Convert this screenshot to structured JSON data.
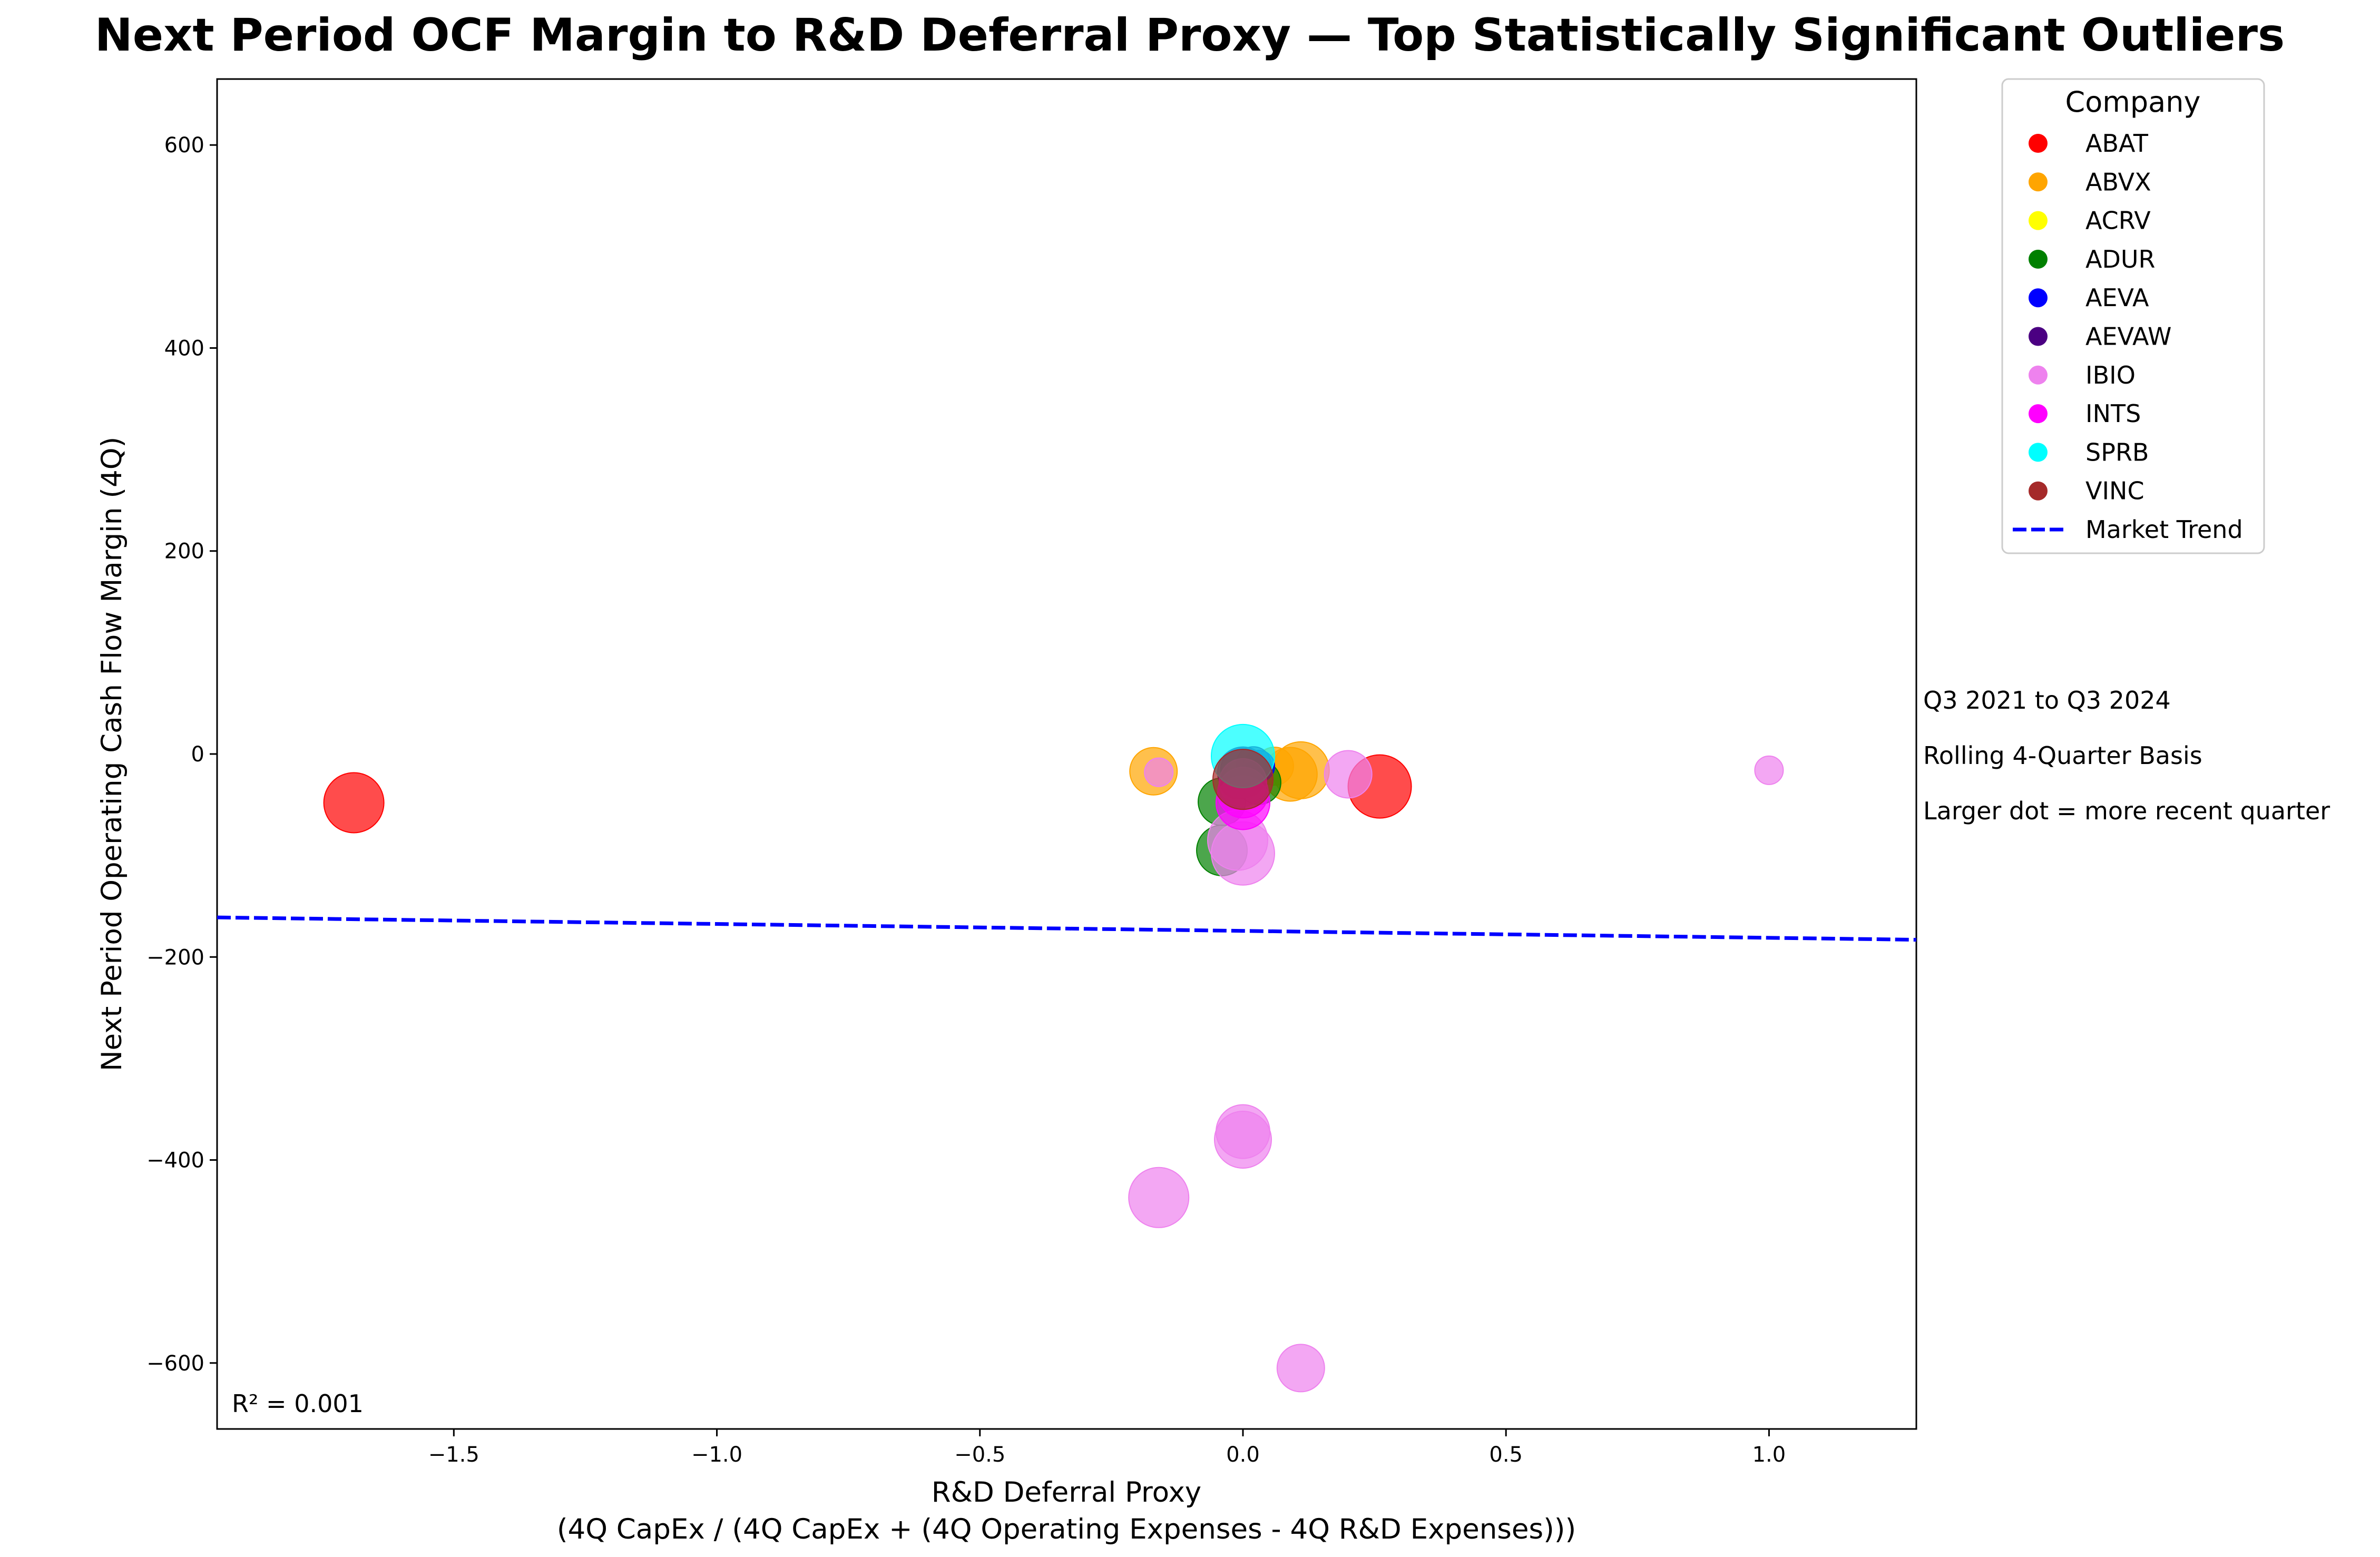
{
  "chart_data": {
    "type": "scatter",
    "title": "Next Period OCF Margin to R&D Deferral Proxy — Top Statistically Significant Outliers",
    "xlabel": "R&D Deferral Proxy",
    "xlabel_line2": "(4Q CapEx / (4Q CapEx + (4Q Operating Expenses - 4Q R&D Expenses)))",
    "ylabel": "Next Period Operating Cash Flow Margin (4Q)",
    "xlim": [
      -1.95,
      1.28
    ],
    "ylim": [
      -665,
      665
    ],
    "x_ticks": [
      -1.5,
      -1.0,
      -0.5,
      0.0,
      0.5,
      1.0
    ],
    "x_tick_labels": [
      "−1.5",
      "−1.0",
      "−0.5",
      "0.0",
      "0.5",
      "1.0"
    ],
    "y_ticks": [
      600,
      400,
      200,
      0,
      -200,
      -400,
      -600
    ],
    "y_tick_labels": [
      "600",
      "400",
      "200",
      "0",
      "−200",
      "−400",
      "−600"
    ],
    "grid": false,
    "legend_title": "Company",
    "legend_placement": "outside-top-right",
    "series": [
      {
        "name": "ABAT",
        "color": "#ff0000",
        "points": [
          {
            "x": -1.69,
            "y": -48,
            "size": 0.95
          },
          {
            "x": 0.26,
            "y": -32,
            "size": 1.0
          },
          {
            "x": -0.01,
            "y": -27,
            "size": 0.55
          }
        ]
      },
      {
        "name": "ABVX",
        "color": "#ffa500",
        "points": [
          {
            "x": -0.17,
            "y": -17,
            "size": 0.75
          },
          {
            "x": 0.09,
            "y": -20,
            "size": 0.85
          },
          {
            "x": 0.11,
            "y": -16,
            "size": 0.9
          },
          {
            "x": 0.06,
            "y": -12,
            "size": 0.6
          }
        ]
      },
      {
        "name": "ACRV",
        "color": "#ffff00",
        "points": [
          {
            "x": 0.0,
            "y": -20,
            "size": 0.5
          }
        ]
      },
      {
        "name": "ADUR",
        "color": "#008000",
        "points": [
          {
            "x": -0.04,
            "y": -47,
            "size": 0.75
          },
          {
            "x": -0.04,
            "y": -95,
            "size": 0.8
          },
          {
            "x": 0.03,
            "y": -28,
            "size": 0.7
          }
        ]
      },
      {
        "name": "AEVA",
        "color": "#0000ff",
        "points": [
          {
            "x": 0.0,
            "y": -15,
            "size": 0.7
          },
          {
            "x": 0.03,
            "y": -12,
            "size": 0.5
          }
        ]
      },
      {
        "name": "AEVAW",
        "color": "#4b0082",
        "points": [
          {
            "x": 0.0,
            "y": -18,
            "size": 0.8
          },
          {
            "x": 0.02,
            "y": -10,
            "size": 0.55
          }
        ]
      },
      {
        "name": "IBIO",
        "color": "#ee82ee",
        "points": [
          {
            "x": 1.0,
            "y": -16,
            "size": 0.45
          },
          {
            "x": -0.16,
            "y": -18,
            "size": 0.45
          },
          {
            "x": 0.2,
            "y": -20,
            "size": 0.75
          },
          {
            "x": -0.01,
            "y": -85,
            "size": 0.95
          },
          {
            "x": 0.0,
            "y": -98,
            "size": 1.0
          },
          {
            "x": -0.16,
            "y": -437,
            "size": 0.95
          },
          {
            "x": 0.0,
            "y": -372,
            "size": 0.85
          },
          {
            "x": 0.0,
            "y": -380,
            "size": 0.9
          },
          {
            "x": 0.11,
            "y": -605,
            "size": 0.75
          }
        ]
      },
      {
        "name": "INTS",
        "color": "#ff00ff",
        "points": [
          {
            "x": 0.0,
            "y": -38,
            "size": 0.8
          },
          {
            "x": 0.0,
            "y": -48,
            "size": 0.85
          },
          {
            "x": 0.0,
            "y": -28,
            "size": 0.75
          }
        ]
      },
      {
        "name": "SPRB",
        "color": "#00ffff",
        "points": [
          {
            "x": 0.0,
            "y": -2,
            "size": 1.0
          }
        ]
      },
      {
        "name": "VINC",
        "color": "#a52a2a",
        "points": [
          {
            "x": 0.0,
            "y": -25,
            "size": 0.95
          }
        ]
      }
    ],
    "trend": {
      "name": "Market Trend",
      "color": "#0000ff",
      "style": "dashed",
      "points": [
        [
          -1.95,
          -161
        ],
        [
          1.28,
          -183
        ]
      ]
    },
    "annotations": [
      "Q3 2021 to Q3 2024",
      "Rolling 4-Quarter Basis",
      "Larger dot = more recent quarter"
    ],
    "r_squared_label": "R² = 0.001"
  }
}
